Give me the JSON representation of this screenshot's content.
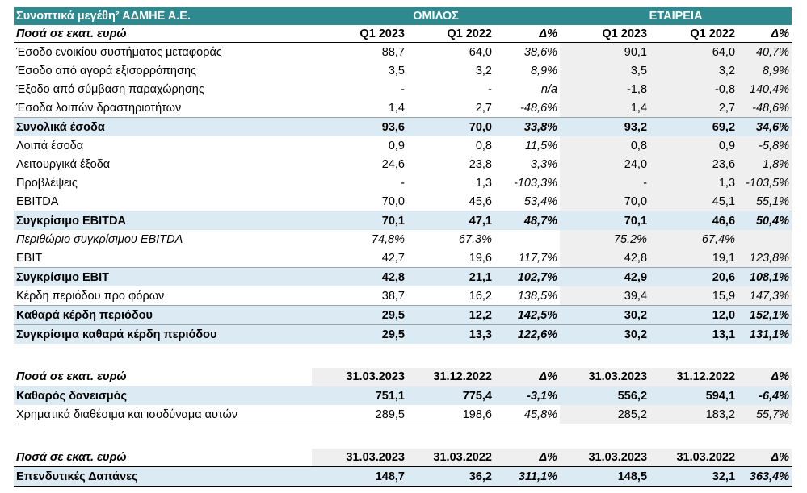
{
  "title": {
    "label": "Συνοπτικά μεγέθη² ΑΔΜΗΕ Α.Ε.",
    "group": "ΟΜΙΛΟΣ",
    "company": "ΕΤΑΙΡΕΙΑ"
  },
  "colors": {
    "title_bg": "#2e8a8f",
    "highlight_row": "#dbeaf3",
    "shade": "#efefef"
  },
  "section1": {
    "header": [
      "Ποσά σε εκατ. ευρώ",
      "Q1 2023",
      "Q1 2022",
      "Δ%",
      "Q1 2023",
      "Q1 2022",
      "Δ%"
    ],
    "rows": [
      [
        "Έσοδο ενοικίου συστήματος μεταφοράς",
        "88,7",
        "64,0",
        "38,6%",
        "90,1",
        "64,0",
        "40,7%"
      ],
      [
        "Έσοδο από αγορά εξισορρόπησης",
        "3,5",
        "3,2",
        "8,9%",
        "3,5",
        "3,2",
        "8,9%"
      ],
      [
        "Έξοδο από σύμβαση παραχώρησης",
        "-",
        "-",
        "n/a",
        "-1,8",
        "-0,8",
        "140,4%"
      ],
      [
        "Έσοδα λοιπών δραστηριοτήτων",
        "1,4",
        "2,7",
        "-48,6%",
        "1,4",
        "2,7",
        "-48,6%"
      ],
      [
        "Συνολικά έσοδα",
        "93,6",
        "70,0",
        "33,8%",
        "93,2",
        "69,2",
        "34,6%"
      ],
      [
        "Λοιπά έσοδα",
        "0,9",
        "0,8",
        "11,5%",
        "0,8",
        "0,9",
        "-5,8%"
      ],
      [
        "Λειτουργικά έξοδα",
        "24,6",
        "23,8",
        "3,3%",
        "24,0",
        "23,6",
        "1,8%"
      ],
      [
        "Προβλέψεις",
        "-",
        "1,3",
        "-103,3%",
        "-",
        "1,3",
        "-103,5%"
      ],
      [
        "EBITDA",
        "70,0",
        "45,6",
        "53,4%",
        "70,0",
        "45,1",
        "55,1%"
      ],
      [
        "Συγκρίσιμο EBITDA",
        "70,1",
        "47,1",
        "48,7%",
        "70,1",
        "46,6",
        "50,4%"
      ],
      [
        "Περιθώριο συγκρίσιμου EBITDA",
        "74,8%",
        "67,3%",
        "",
        "75,2%",
        "67,4%",
        ""
      ],
      [
        "EBIT",
        "42,7",
        "19,6",
        "117,7%",
        "42,8",
        "19,1",
        "123,8%"
      ],
      [
        "Συγκρίσιμο EBIT",
        "42,8",
        "21,1",
        "102,7%",
        "42,9",
        "20,6",
        "108,1%"
      ],
      [
        "Κέρδη περιόδου προ φόρων",
        "38,7",
        "16,2",
        "138,5%",
        "39,4",
        "15,9",
        "147,3%"
      ],
      [
        "Καθαρά κέρδη περιόδου",
        "29,5",
        "12,2",
        "142,5%",
        "30,2",
        "12,0",
        "152,1%"
      ],
      [
        "Συγκρίσιμα καθαρά κέρδη περιόδου",
        "29,5",
        "13,3",
        "122,6%",
        "30,2",
        "13,1",
        "131,1%"
      ]
    ]
  },
  "section2": {
    "header": [
      "Ποσά σε εκατ. ευρώ",
      "31.03.2023",
      "31.12.2022",
      "Δ%",
      "31.03.2023",
      "31.12.2022",
      "Δ%"
    ],
    "rows": [
      [
        "Καθαρός δανεισμός",
        "751,1",
        "775,4",
        "-3,1%",
        "556,2",
        "594,1",
        "-6,4%"
      ],
      [
        "Χρηματικά διαθέσιμα και ισοδύναμα αυτών",
        "289,5",
        "198,6",
        "45,8%",
        "285,2",
        "183,2",
        "55,7%"
      ]
    ]
  },
  "section3": {
    "header": [
      "Ποσά σε εκατ. ευρώ",
      "31.03.2023",
      "31.03.2022",
      "Δ%",
      "31.03.2023",
      "31.03.2022",
      "Δ%"
    ],
    "rows": [
      [
        "Επενδυτικές Δαπάνες",
        "148,7",
        "36,2",
        "311,1%",
        "148,5",
        "32,1",
        "363,4%"
      ]
    ]
  }
}
